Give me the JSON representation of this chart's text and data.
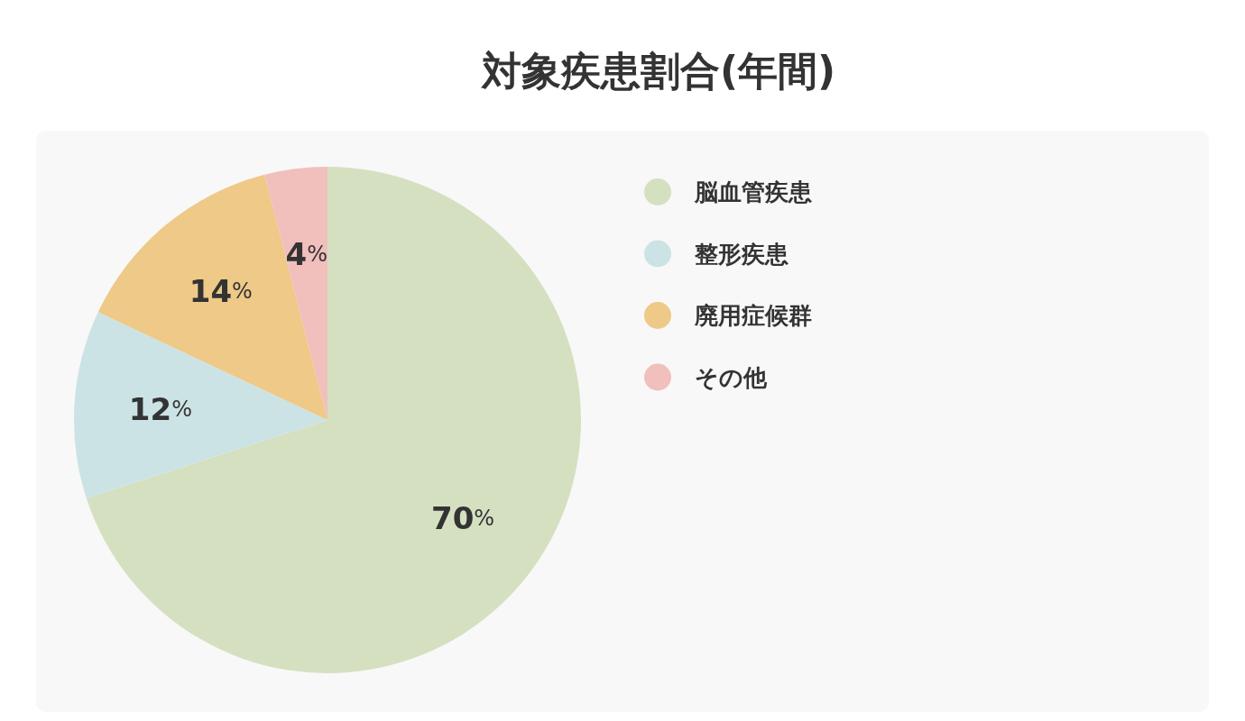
{
  "chart_data": {
    "type": "pie",
    "title": "対象疾患割合(年間)",
    "categories": [
      "脳血管疾患",
      "整形疾患",
      "廃用症候群",
      "その他"
    ],
    "values": [
      70,
      12,
      14,
      4
    ],
    "colors": [
      "#d5e0c1",
      "#cce3e5",
      "#eec987",
      "#f1bfbc"
    ],
    "value_labels": [
      "70%",
      "12%",
      "14%",
      "4%"
    ],
    "legend": "right"
  }
}
